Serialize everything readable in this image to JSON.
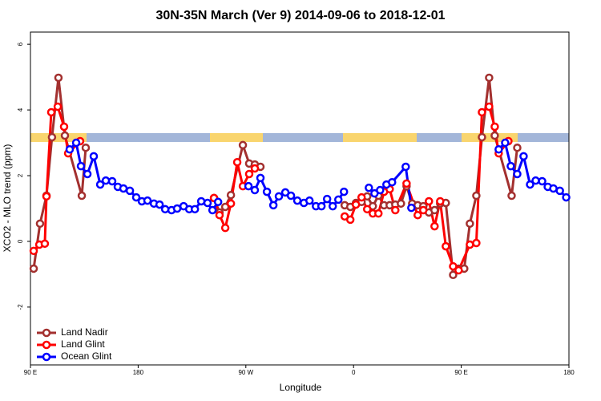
{
  "chart_data": {
    "type": "line",
    "title": "30N-35N March (Ver 9)   2014-09-06 to 2018-12-01",
    "x_label": "Longitude",
    "y_label": "XCO2 - MLO trend (ppm)",
    "xlim": [
      90,
      540
    ],
    "xticks": [
      {
        "value": 90,
        "label": "90 E"
      },
      {
        "value": 180,
        "label": "180"
      },
      {
        "value": 270,
        "label": "90 W"
      },
      {
        "value": 360,
        "label": "0"
      },
      {
        "value": 450,
        "label": "90 E"
      },
      {
        "value": 540,
        "label": "180"
      }
    ],
    "ylim": [
      -3.76,
      6.37
    ],
    "yticks": [
      -2,
      0,
      2,
      4,
      6
    ],
    "legend": "bottomleft",
    "series": [
      {
        "name": "Land Nadir",
        "color": "#a3302f",
        "x": [
          92.7,
          98,
          103.4,
          108,
          113.4,
          118.8,
          132.9,
          136.2,
          null,
          243.4,
          248,
          252.8,
          257.5,
          267.5,
          272.8,
          277.5,
          282.2,
          null,
          352.6,
          357.3,
          362,
          366.7,
          371.4,
          376.1,
          380.8,
          385.5,
          390.2,
          394.9,
          399.6,
          404.3,
          409,
          413.6,
          418.3,
          423,
          427.7,
          432.4,
          437.1,
          443.2,
          447.8,
          452.5,
          457.2,
          462.6,
          467.3,
          473.3,
          478,
          492.1,
          496.8
        ],
        "values": [
          -0.83,
          0.54,
          1.39,
          3.17,
          4.98,
          3.22,
          1.39,
          2.85,
          null,
          1.32,
          0.88,
          1.05,
          1.41,
          2.93,
          2.37,
          2.34,
          2.27,
          null,
          1.1,
          1.05,
          1.17,
          1.2,
          1.37,
          1.07,
          1.39,
          1.1,
          1.1,
          1.12,
          1.15,
          1.68,
          1.15,
          1.1,
          1.07,
          0.88,
          0.95,
          1.15,
          1.17,
          -1.02,
          -0.83,
          -0.83,
          0.54,
          1.39,
          3.17,
          4.98,
          3.22,
          1.39,
          2.85
        ]
      },
      {
        "name": "Land Glint",
        "color": "#ff0000",
        "x": [
          92.7,
          97.4,
          102,
          103.4,
          107.4,
          112.8,
          118.1,
          121.5,
          131.5,
          null,
          243.4,
          248,
          252.8,
          257.5,
          262.8,
          267.5,
          272.8,
          277.5,
          null,
          352.6,
          357.3,
          362,
          366.7,
          371.4,
          376.1,
          380.8,
          385.5,
          390.2,
          394.9,
          404.3,
          413.6,
          418.3,
          423,
          427.7,
          432.4,
          437.1,
          443.2,
          447.8,
          457.2,
          462.6,
          467.3,
          473.3,
          478,
          481.3,
          489.4
        ],
        "values": [
          -0.29,
          -0.1,
          -0.07,
          1.37,
          3.93,
          4.1,
          3.49,
          2.68,
          3.05,
          null,
          1.32,
          0.8,
          0.41,
          1.15,
          2.41,
          1.68,
          2.05,
          2.22,
          null,
          0.76,
          0.66,
          1.12,
          1.34,
          0.98,
          0.85,
          0.85,
          1.51,
          1.59,
          0.95,
          1.76,
          0.8,
          0.95,
          1.22,
          0.46,
          1.22,
          -0.15,
          -0.76,
          -0.88,
          -0.1,
          -0.05,
          3.93,
          4.1,
          3.49,
          2.68,
          3.05
        ]
      },
      {
        "name": "Ocean Glint",
        "color": "#0000ff",
        "x": [
          122.8,
          128.2,
          132.2,
          137.6,
          142.9,
          148.3,
          153,
          158.3,
          163,
          167.7,
          173.1,
          178.4,
          183.1,
          187.8,
          193.2,
          197.9,
          202.6,
          207.9,
          212.6,
          218,
          222.7,
          227.4,
          232.7,
          238,
          242.1,
          246.8,
          null,
          272.2,
          277.5,
          282.2,
          287.6,
          293,
          297.6,
          303,
          307.7,
          313,
          318.5,
          323.2,
          328.6,
          333.2,
          337.9,
          342.6,
          347.3,
          352,
          null,
          372.8,
          377.5,
          382.2,
          387.5,
          392.2,
          403.6,
          408.3,
          null,
          481.3,
          486.7,
          491.4,
          496.8,
          502.1,
          507.5,
          512.2,
          517.6,
          522.3,
          527,
          532.4,
          537.7
        ],
        "values": [
          2.8,
          3.0,
          2.29,
          2.05,
          2.59,
          1.73,
          1.85,
          1.83,
          1.66,
          1.61,
          1.54,
          1.34,
          1.22,
          1.24,
          1.15,
          1.12,
          0.98,
          0.95,
          1.0,
          1.07,
          0.98,
          0.98,
          1.22,
          1.17,
          0.95,
          1.2,
          null,
          1.68,
          1.56,
          1.93,
          1.51,
          1.1,
          1.37,
          1.49,
          1.39,
          1.24,
          1.17,
          1.24,
          1.07,
          1.07,
          1.29,
          1.07,
          1.27,
          1.51,
          null,
          1.63,
          1.46,
          1.56,
          1.73,
          1.8,
          2.27,
          1.02,
          null,
          2.8,
          3.0,
          2.29,
          2.05,
          2.59,
          1.73,
          1.85,
          1.83,
          1.66,
          1.61,
          1.54,
          1.34
        ]
      }
    ]
  }
}
